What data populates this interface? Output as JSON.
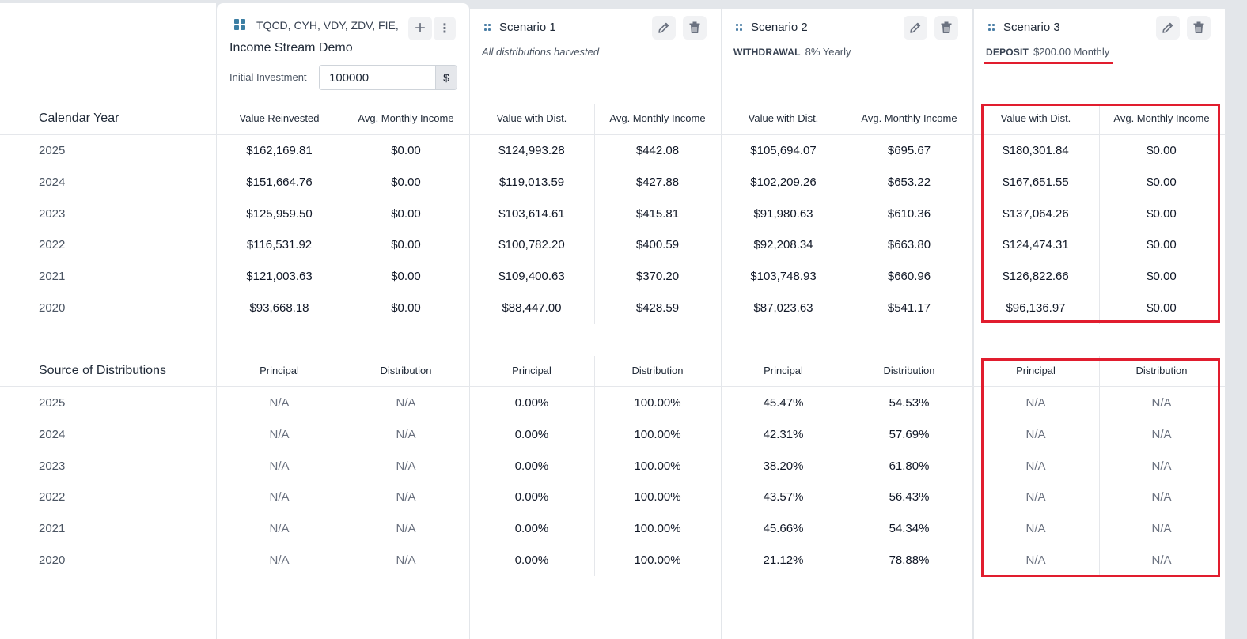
{
  "base": {
    "tickers": "TQCD, CYH, VDY, ZDV, FIE, PDC",
    "title": "Income Stream Demo",
    "investment_label": "Initial Investment",
    "investment_value": "100000",
    "currency_symbol": "$",
    "add_symbol": "+",
    "menu_symbol": "⋮"
  },
  "scenarios": [
    {
      "name": "Scenario 1",
      "subtitle": "All distributions harvested"
    },
    {
      "name": "Scenario 2",
      "type": "WITHDRAWAL",
      "detail": "8% Yearly"
    },
    {
      "name": "Scenario 3",
      "type": "DEPOSIT",
      "detail": "$200.00 Monthly"
    }
  ],
  "calendar": {
    "title": "Calendar Year",
    "headers": [
      "Value Reinvested",
      "Avg. Monthly Income",
      "Value with Dist.",
      "Avg. Monthly Income",
      "Value with Dist.",
      "Avg. Monthly Income",
      "Value with Dist.",
      "Avg. Monthly Income"
    ],
    "rows": [
      {
        "year": "2025",
        "cells": [
          "$162,169.81",
          "$0.00",
          "$124,993.28",
          "$442.08",
          "$105,694.07",
          "$695.67",
          "$180,301.84",
          "$0.00"
        ]
      },
      {
        "year": "2024",
        "cells": [
          "$151,664.76",
          "$0.00",
          "$119,013.59",
          "$427.88",
          "$102,209.26",
          "$653.22",
          "$167,651.55",
          "$0.00"
        ]
      },
      {
        "year": "2023",
        "cells": [
          "$125,959.50",
          "$0.00",
          "$103,614.61",
          "$415.81",
          "$91,980.63",
          "$610.36",
          "$137,064.26",
          "$0.00"
        ]
      },
      {
        "year": "2022",
        "cells": [
          "$116,531.92",
          "$0.00",
          "$100,782.20",
          "$400.59",
          "$92,208.34",
          "$663.80",
          "$124,474.31",
          "$0.00"
        ]
      },
      {
        "year": "2021",
        "cells": [
          "$121,003.63",
          "$0.00",
          "$109,400.63",
          "$370.20",
          "$103,748.93",
          "$660.96",
          "$126,822.66",
          "$0.00"
        ]
      },
      {
        "year": "2020",
        "cells": [
          "$93,668.18",
          "$0.00",
          "$88,447.00",
          "$428.59",
          "$87,023.63",
          "$541.17",
          "$96,136.97",
          "$0.00"
        ]
      }
    ]
  },
  "sources": {
    "title": "Source of Distributions",
    "headers": [
      "Principal",
      "Distribution",
      "Principal",
      "Distribution",
      "Principal",
      "Distribution",
      "Principal",
      "Distribution"
    ],
    "rows": [
      {
        "year": "2025",
        "cells": [
          "N/A",
          "N/A",
          "0.00%",
          "100.00%",
          "45.47%",
          "54.53%",
          "N/A",
          "N/A"
        ]
      },
      {
        "year": "2024",
        "cells": [
          "N/A",
          "N/A",
          "0.00%",
          "100.00%",
          "42.31%",
          "57.69%",
          "N/A",
          "N/A"
        ]
      },
      {
        "year": "2023",
        "cells": [
          "N/A",
          "N/A",
          "0.00%",
          "100.00%",
          "38.20%",
          "61.80%",
          "N/A",
          "N/A"
        ]
      },
      {
        "year": "2022",
        "cells": [
          "N/A",
          "N/A",
          "0.00%",
          "100.00%",
          "43.57%",
          "56.43%",
          "N/A",
          "N/A"
        ]
      },
      {
        "year": "2021",
        "cells": [
          "N/A",
          "N/A",
          "0.00%",
          "100.00%",
          "45.66%",
          "54.34%",
          "N/A",
          "N/A"
        ]
      },
      {
        "year": "2020",
        "cells": [
          "N/A",
          "N/A",
          "0.00%",
          "100.00%",
          "21.12%",
          "78.88%",
          "N/A",
          "N/A"
        ]
      }
    ]
  },
  "colors": {
    "highlight": "#e11d2e",
    "accent": "#3b7ea3"
  },
  "icons": [
    "grid-icon",
    "plus-icon",
    "kebab-menu-icon",
    "drag-handle-icon",
    "pencil-icon",
    "trash-icon"
  ]
}
